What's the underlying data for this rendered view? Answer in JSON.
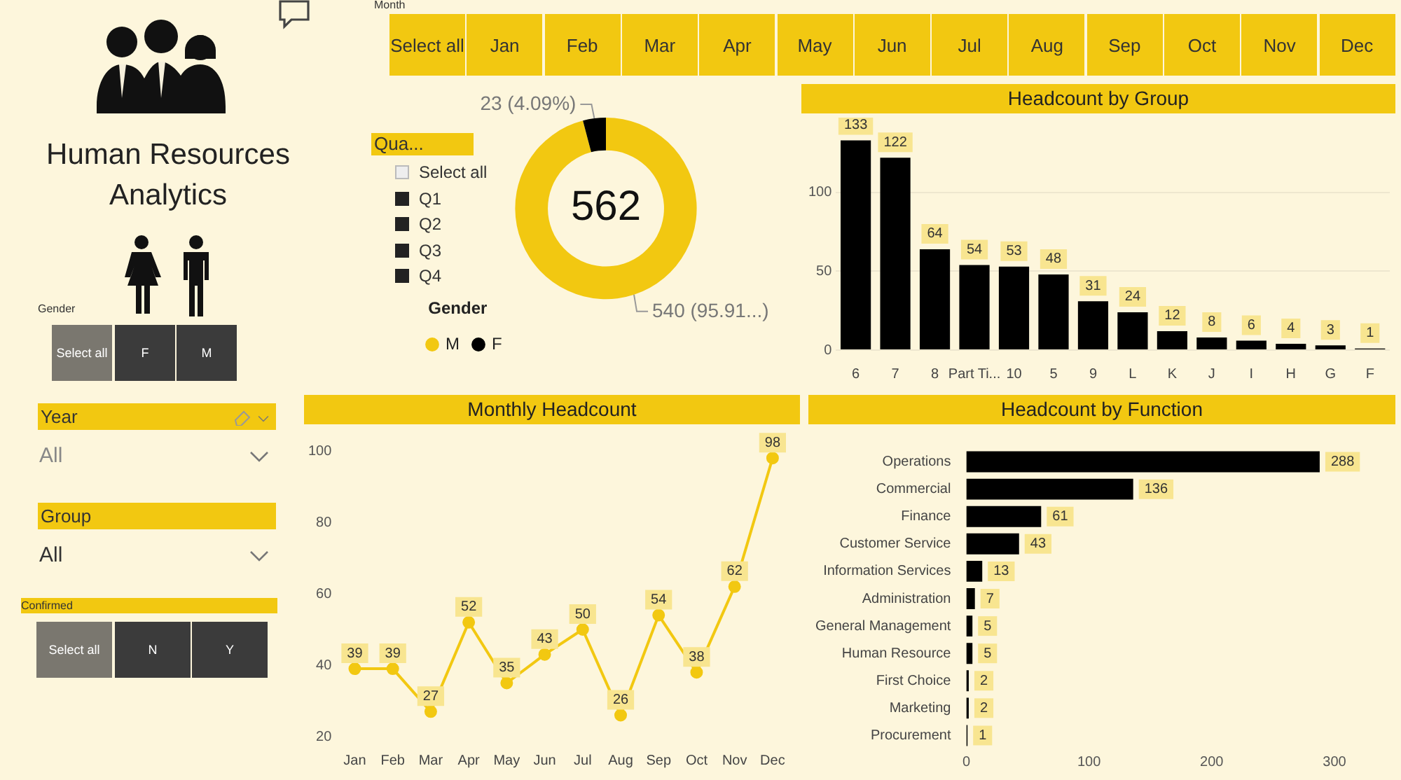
{
  "chart_data": [
    {
      "type": "other",
      "title": "Human Resources Analytics",
      "annotations": [
        "Month",
        "Select all",
        "Jan",
        "Feb",
        "Mar",
        "Apr",
        "May",
        "Jun",
        "Jul",
        "Aug",
        "Sep",
        "Oct",
        "Nov",
        "Dec",
        "Gender",
        "Select all",
        "F",
        "M",
        "Year",
        "All",
        "Group",
        "All",
        "Confirmed",
        "Select all",
        "N",
        "Y",
        "Qua...",
        "Select all",
        "Q1",
        "Q2",
        "Q3",
        "Q4"
      ]
    },
    {
      "type": "donut",
      "categories": [
        "M",
        "F"
      ],
      "values": [
        540,
        23
      ],
      "colors": [
        "#f2c811",
        "#000000"
      ],
      "value_labels": [
        "540 (95.91...)",
        "23 (4.09%)"
      ],
      "legend": "bottom left",
      "legend_title": "Gender",
      "annotations": [
        "562"
      ]
    },
    {
      "type": "bar",
      "title": "Headcount by Group",
      "categories": [
        "6",
        "7",
        "8",
        "Part Ti...",
        "10",
        "5",
        "9",
        "L",
        "K",
        "J",
        "I",
        "H",
        "G",
        "F"
      ],
      "values": [
        133,
        122,
        64,
        54,
        53,
        48,
        31,
        24,
        12,
        8,
        6,
        4,
        3,
        1
      ],
      "color": "#000000",
      "ylim": [
        0,
        135
      ],
      "yticks": [
        0,
        50,
        100
      ],
      "grid": "y",
      "data_labels": true,
      "legend": false
    },
    {
      "type": "line",
      "title": "Monthly Headcount",
      "categories": [
        "Jan",
        "Feb",
        "Mar",
        "Apr",
        "May",
        "Jun",
        "Jul",
        "Aug",
        "Sep",
        "Oct",
        "Nov",
        "Dec"
      ],
      "values": [
        39,
        39,
        27,
        52,
        35,
        43,
        50,
        26,
        54,
        38,
        62,
        98
      ],
      "color": "#f2c811",
      "ylim": [
        20,
        100
      ],
      "yticks": [
        20,
        40,
        60,
        80,
        100
      ],
      "marker": "circle",
      "data_labels": true,
      "legend": false
    },
    {
      "type": "bar",
      "orientation": "horizontal",
      "title": "Headcount by Function",
      "categories": [
        "Operations",
        "Commercial",
        "Finance",
        "Customer Service",
        "Information Services",
        "Administration",
        "General Management",
        "Human Resource",
        "First Choice",
        "Marketing",
        "Procurement"
      ],
      "values": [
        288,
        136,
        61,
        43,
        13,
        7,
        5,
        5,
        2,
        2,
        1
      ],
      "color": "#000000",
      "xlim": [
        0,
        320
      ],
      "xticks": [
        0,
        100,
        200,
        300
      ],
      "data_labels": true,
      "legend": false
    }
  ]
}
